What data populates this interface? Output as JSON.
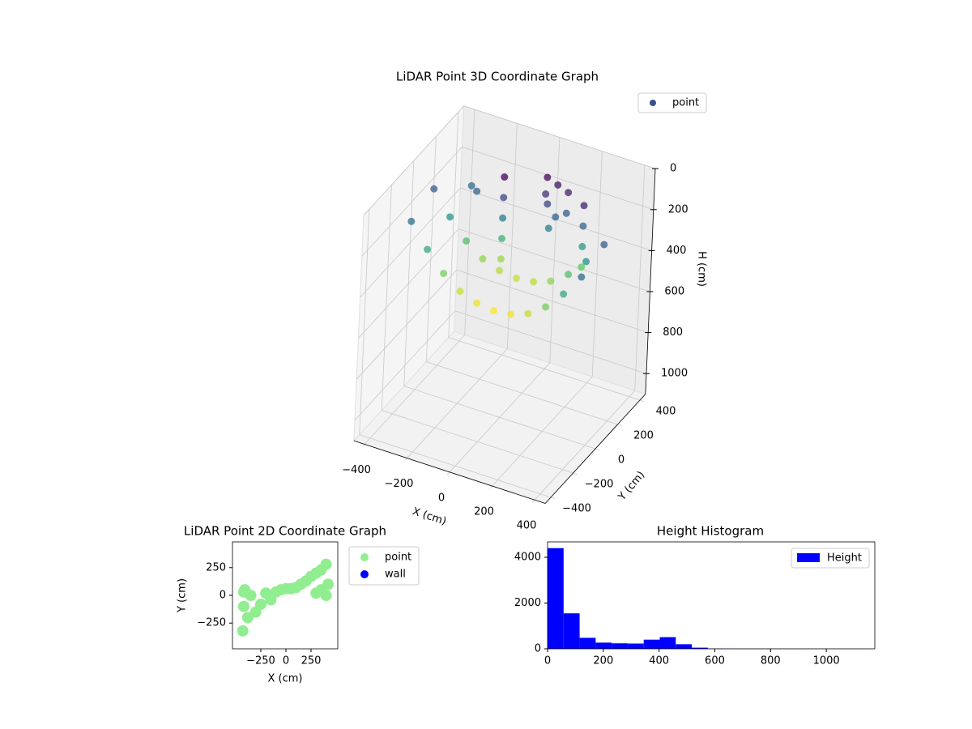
{
  "chart_data": [
    {
      "type": "scatter3d",
      "title": "LiDAR Point 3D Coordinate Graph",
      "xlabel": "X (cm)",
      "ylabel": "Y (cm)",
      "zlabel": "H (cm)",
      "colormap": "viridis",
      "zinvert": true,
      "grid": true,
      "legend": "upper right",
      "xlim": [
        -450,
        450
      ],
      "ylim": [
        -450,
        450
      ],
      "zlim": [
        0,
        1100
      ],
      "xticks": [
        {
          "value": -400,
          "label": "−400"
        },
        {
          "value": -200,
          "label": "−200"
        },
        0,
        200,
        400
      ],
      "yticks": [
        {
          "value": -400,
          "label": "−400"
        },
        {
          "value": -200,
          "label": "−200"
        },
        0,
        200,
        400
      ],
      "zticks": [
        0,
        200,
        400,
        600,
        800,
        1000
      ],
      "series": [
        {
          "name": "point",
          "color": "#3b528b",
          "x": [
            -400,
            -320,
            -240,
            -160,
            -80,
            0,
            80,
            160,
            240,
            320,
            400,
            -400,
            -320,
            -240,
            -160,
            -80,
            0,
            80,
            160,
            240,
            320,
            400,
            50,
            100,
            150,
            80,
            120,
            60,
            160,
            100,
            -100,
            -100,
            -100,
            -100,
            -100,
            250,
            250,
            250,
            250,
            -250,
            -300
          ],
          "y": [
            -100,
            -100,
            -100,
            -100,
            -100,
            -100,
            -100,
            -100,
            -100,
            -100,
            -100,
            100,
            100,
            100,
            100,
            100,
            100,
            100,
            100,
            100,
            100,
            100,
            250,
            250,
            250,
            200,
            200,
            220,
            220,
            180,
            150,
            150,
            150,
            150,
            150,
            200,
            200,
            200,
            200,
            200,
            250
          ],
          "z": [
            220,
            330,
            420,
            480,
            510,
            520,
            510,
            480,
            420,
            330,
            220,
            180,
            290,
            380,
            440,
            470,
            480,
            470,
            440,
            380,
            290,
            180,
            60,
            80,
            100,
            150,
            200,
            120,
            180,
            250,
            50,
            150,
            250,
            350,
            450,
            100,
            200,
            300,
            400,
            200,
            220
          ]
        }
      ]
    },
    {
      "type": "scatter",
      "title": "LiDAR Point 2D Coordinate Graph",
      "xlabel": "X (cm)",
      "ylabel": "Y (cm)",
      "legend": "outside right",
      "xlim": [
        -532,
        516
      ],
      "ylim": [
        -482,
        482
      ],
      "xticks": [
        {
          "value": -250,
          "label": "−250"
        },
        0,
        250
      ],
      "yticks": [
        {
          "value": -250,
          "label": "−250"
        },
        0,
        250
      ],
      "series": [
        {
          "name": "point",
          "color": "#90ee90",
          "x": [
            -430,
            -420,
            -410,
            -380,
            -350,
            -300,
            -250,
            -200,
            -150,
            -100,
            -50,
            0,
            50,
            100,
            150,
            200,
            250,
            300,
            350,
            400,
            420,
            400,
            350,
            300,
            -420
          ],
          "y": [
            -320,
            -100,
            50,
            -200,
            0,
            -150,
            -80,
            20,
            -40,
            30,
            50,
            60,
            60,
            70,
            100,
            130,
            170,
            200,
            230,
            280,
            100,
            0,
            50,
            20,
            30
          ]
        },
        {
          "name": "wall",
          "color": "#0000ff",
          "x": [],
          "y": []
        }
      ]
    },
    {
      "type": "histogram",
      "title": "Height Histogram",
      "legend": "upper right",
      "xlim": [
        0,
        1174
      ],
      "ylim": [
        0,
        4673
      ],
      "xticks": [
        0,
        200,
        400,
        600,
        800,
        1000
      ],
      "yticks": [
        0,
        2000,
        4000
      ],
      "bins": [
        0,
        57.5,
        115,
        172.5,
        230,
        287.5,
        345,
        402.5,
        460,
        517.5,
        575,
        632.5,
        690,
        747.5,
        805,
        862.5,
        920,
        977.5,
        1035,
        1092.5,
        1150
      ],
      "series": [
        {
          "name": "Height",
          "color": "#0000ff",
          "values": [
            4400,
            1550,
            480,
            270,
            240,
            230,
            400,
            510,
            200,
            50,
            10,
            5,
            5,
            5,
            3,
            3,
            2,
            2,
            2,
            2
          ]
        }
      ]
    }
  ]
}
